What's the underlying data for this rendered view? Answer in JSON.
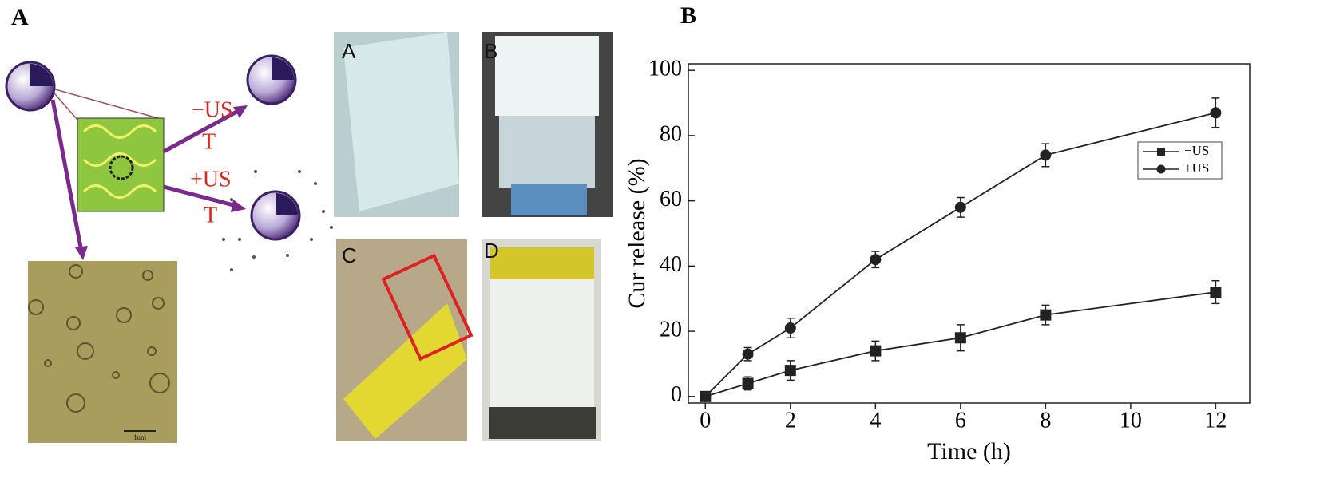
{
  "panels": {
    "a_label": "A",
    "b_label": "B",
    "schematic": {
      "labels": [
        "−US",
        "T",
        "+US",
        "T"
      ]
    },
    "micrograph": {
      "scale_bar": "1um"
    },
    "photos": [
      "A",
      "B",
      "C",
      "D"
    ]
  },
  "chart_data": {
    "type": "line",
    "x_label": "Time (h)",
    "y_label": "Cur release (%)",
    "x": [
      0,
      1,
      2,
      4,
      6,
      8,
      12
    ],
    "series": [
      {
        "name": "−US",
        "color": "#222222",
        "marker": "square",
        "values": [
          0,
          4,
          8,
          14,
          18,
          25,
          32
        ],
        "errors": [
          0,
          2,
          3,
          3,
          4,
          3,
          3.5
        ]
      },
      {
        "name": "+US",
        "color": "#222222",
        "marker": "circle",
        "values": [
          0,
          13,
          21,
          42,
          58,
          74,
          87
        ],
        "errors": [
          0,
          2,
          3,
          2.5,
          3,
          3.5,
          4.5
        ]
      }
    ],
    "xlim": [
      -0.4,
      12.8
    ],
    "ylim": [
      -2,
      102
    ],
    "xticks": [
      0,
      2,
      4,
      6,
      8,
      10,
      12
    ],
    "yticks": [
      0,
      20,
      40,
      60,
      80,
      100
    ],
    "legend": "right",
    "grid": false
  }
}
